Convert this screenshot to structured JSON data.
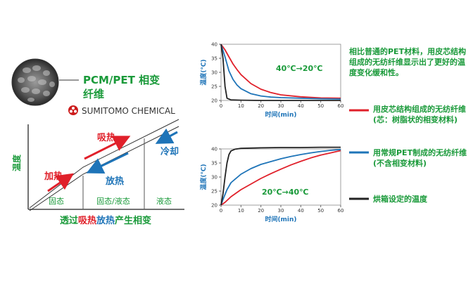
{
  "left": {
    "product_line1": "PCM/PET 相变",
    "product_line2": "纤维",
    "brand": "SUMITOMO CHEMICAL",
    "diagram": {
      "ylabel": "温度",
      "heat_label": "加热",
      "absorb_label": "吸热",
      "release_label": "放热",
      "cool_label": "冷却",
      "phases": [
        "固态",
        "固态/液态",
        "液态"
      ],
      "caption_pre": "透过",
      "caption_absorb": "吸热",
      "caption_release": "放热",
      "caption_post": "产生相变"
    }
  },
  "chart_data": [
    {
      "type": "line",
      "annotation": "40℃→20℃",
      "xlabel": "时间(min)",
      "ylabel": "温度(℃)",
      "xlim": [
        0,
        60
      ],
      "ylim": [
        20,
        40
      ],
      "xticks": [
        0,
        10,
        20,
        30,
        40,
        50,
        60
      ],
      "yticks": [
        20,
        25,
        30,
        35,
        40
      ],
      "grid": false,
      "series": [
        {
          "color": "#e0202a",
          "x": [
            0,
            2,
            4,
            6,
            8,
            10,
            15,
            20,
            25,
            30,
            40,
            50,
            60
          ],
          "y": [
            40,
            38,
            35.5,
            33,
            31,
            29.2,
            26,
            24,
            22.8,
            22,
            21.3,
            20.9,
            20.8
          ]
        },
        {
          "color": "#1e74b8",
          "x": [
            0,
            2,
            4,
            6,
            8,
            10,
            15,
            20,
            25,
            30,
            40,
            50,
            60
          ],
          "y": [
            40,
            35.5,
            30.5,
            27.5,
            25.5,
            24.2,
            22.4,
            21.6,
            21.2,
            21,
            20.8,
            20.6,
            20.5
          ]
        },
        {
          "color": "#222222",
          "x": [
            0,
            1,
            2,
            3,
            5,
            10,
            20,
            30,
            40,
            50,
            60
          ],
          "y": [
            40,
            35,
            25,
            20.8,
            20.2,
            20.1,
            20,
            20,
            20,
            20,
            20
          ]
        }
      ]
    },
    {
      "type": "line",
      "annotation": "20℃→40℃",
      "xlabel": "时间(min)",
      "ylabel": "温度(℃)",
      "xlim": [
        0,
        60
      ],
      "ylim": [
        20,
        40
      ],
      "xticks": [
        0,
        10,
        20,
        30,
        40,
        50,
        60
      ],
      "yticks": [
        20,
        25,
        30,
        35,
        40
      ],
      "grid": false,
      "series": [
        {
          "color": "#e0202a",
          "x": [
            0,
            2,
            5,
            10,
            15,
            20,
            25,
            30,
            35,
            40,
            45,
            50,
            55,
            60
          ],
          "y": [
            20,
            21,
            23,
            25.5,
            27.5,
            29.5,
            31.2,
            32.8,
            34.3,
            35.6,
            36.8,
            37.8,
            38.6,
            39.4
          ]
        },
        {
          "color": "#1e74b8",
          "x": [
            0,
            1,
            3,
            5,
            10,
            15,
            20,
            25,
            30,
            35,
            40,
            45,
            50,
            55,
            60
          ],
          "y": [
            20,
            22,
            25.5,
            28,
            31,
            33,
            34.5,
            35.5,
            36.5,
            37.3,
            38,
            38.6,
            39.1,
            39.5,
            39.8
          ]
        },
        {
          "color": "#222222",
          "x": [
            0,
            1,
            2,
            3,
            4,
            5,
            7,
            10,
            20,
            30,
            40,
            50,
            60
          ],
          "y": [
            20,
            24,
            30,
            35,
            38,
            39.3,
            39.9,
            40.2,
            40.4,
            40.5,
            40.5,
            40.6,
            40.6
          ]
        }
      ]
    }
  ],
  "right_notes": {
    "intro": "相比普通的PET材料，用皮芯结构组成的无纺纤维显示出了更好的温度变化缓和性。",
    "legend": [
      {
        "color": "#e0202a",
        "text": "用皮芯结构组成的无纺纤维(芯：树脂状的相变材料)"
      },
      {
        "color": "#1e74b8",
        "text": "用常规PET制成的无纺纤维(不含相变材料)"
      },
      {
        "color": "#222222",
        "text": "烘箱设定的温度"
      }
    ]
  }
}
